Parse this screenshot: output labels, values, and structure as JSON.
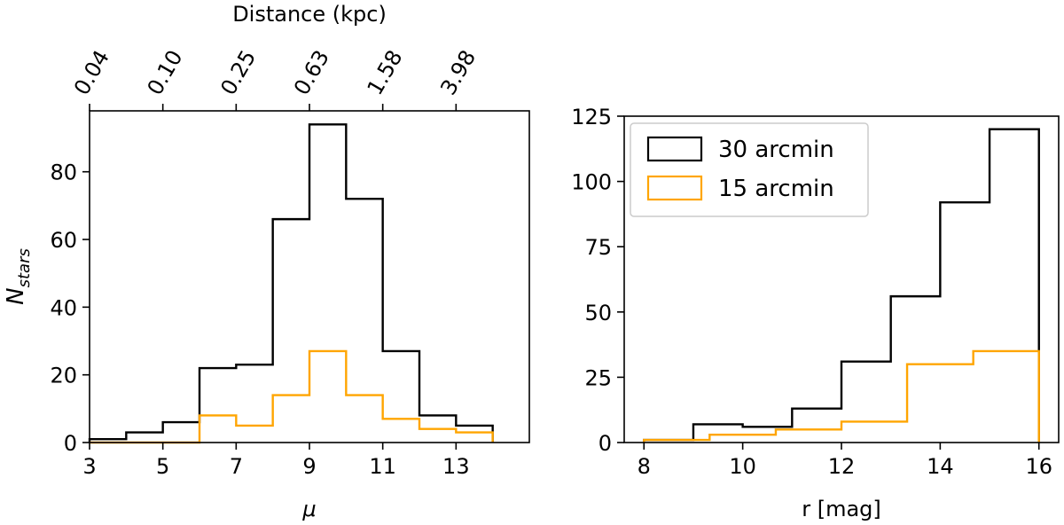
{
  "chart_data": [
    {
      "type": "histogram",
      "xlabel": "μ",
      "ylabel": "N",
      "ylabel_sub": "stars",
      "xlim": [
        3,
        15
      ],
      "ylim": [
        0,
        98
      ],
      "xticks": [
        3,
        5,
        7,
        9,
        11,
        13
      ],
      "yticks": [
        0,
        20,
        40,
        60,
        80
      ],
      "top_axis": {
        "label": "Distance (kpc)",
        "ticks": [
          {
            "mu": 3,
            "label": "0.04"
          },
          {
            "mu": 5,
            "label": "0.10"
          },
          {
            "mu": 7,
            "label": "0.25"
          },
          {
            "mu": 9,
            "label": "0.63"
          },
          {
            "mu": 11,
            "label": "1.58"
          },
          {
            "mu": 13,
            "label": "3.98"
          }
        ]
      },
      "bin_edges": [
        3,
        4,
        5,
        6,
        7,
        8,
        9,
        10,
        11,
        12,
        13,
        14
      ],
      "series": [
        {
          "name": "30 arcmin",
          "color": "#000000",
          "counts": [
            1,
            3,
            6,
            22,
            23,
            66,
            94,
            72,
            27,
            8,
            5
          ]
        },
        {
          "name": "15 arcmin",
          "color": "#ffa500",
          "counts": [
            0,
            0,
            0,
            8,
            5,
            14,
            27,
            14,
            7,
            4,
            3
          ]
        }
      ]
    },
    {
      "type": "histogram",
      "xlabel": "r [mag]",
      "xlim": [
        7.6,
        16.4
      ],
      "ylim": [
        0,
        125
      ],
      "xticks": [
        8,
        10,
        12,
        14,
        16
      ],
      "yticks": [
        0,
        25,
        50,
        75,
        100,
        125
      ],
      "legend": {
        "position": "upper-left"
      },
      "series": [
        {
          "name": "30 arcmin",
          "color": "#000000",
          "bin_edges": [
            8,
            9,
            10,
            11,
            12,
            13,
            14,
            15,
            16
          ],
          "counts": [
            1,
            7,
            6,
            13,
            31,
            56,
            92,
            120
          ]
        },
        {
          "name": "15 arcmin",
          "color": "#ffa500",
          "bin_edges": [
            8,
            9.33,
            10.67,
            12,
            13.33,
            14.67,
            16
          ],
          "counts": [
            1,
            3,
            5,
            8,
            30,
            35
          ]
        }
      ]
    }
  ]
}
